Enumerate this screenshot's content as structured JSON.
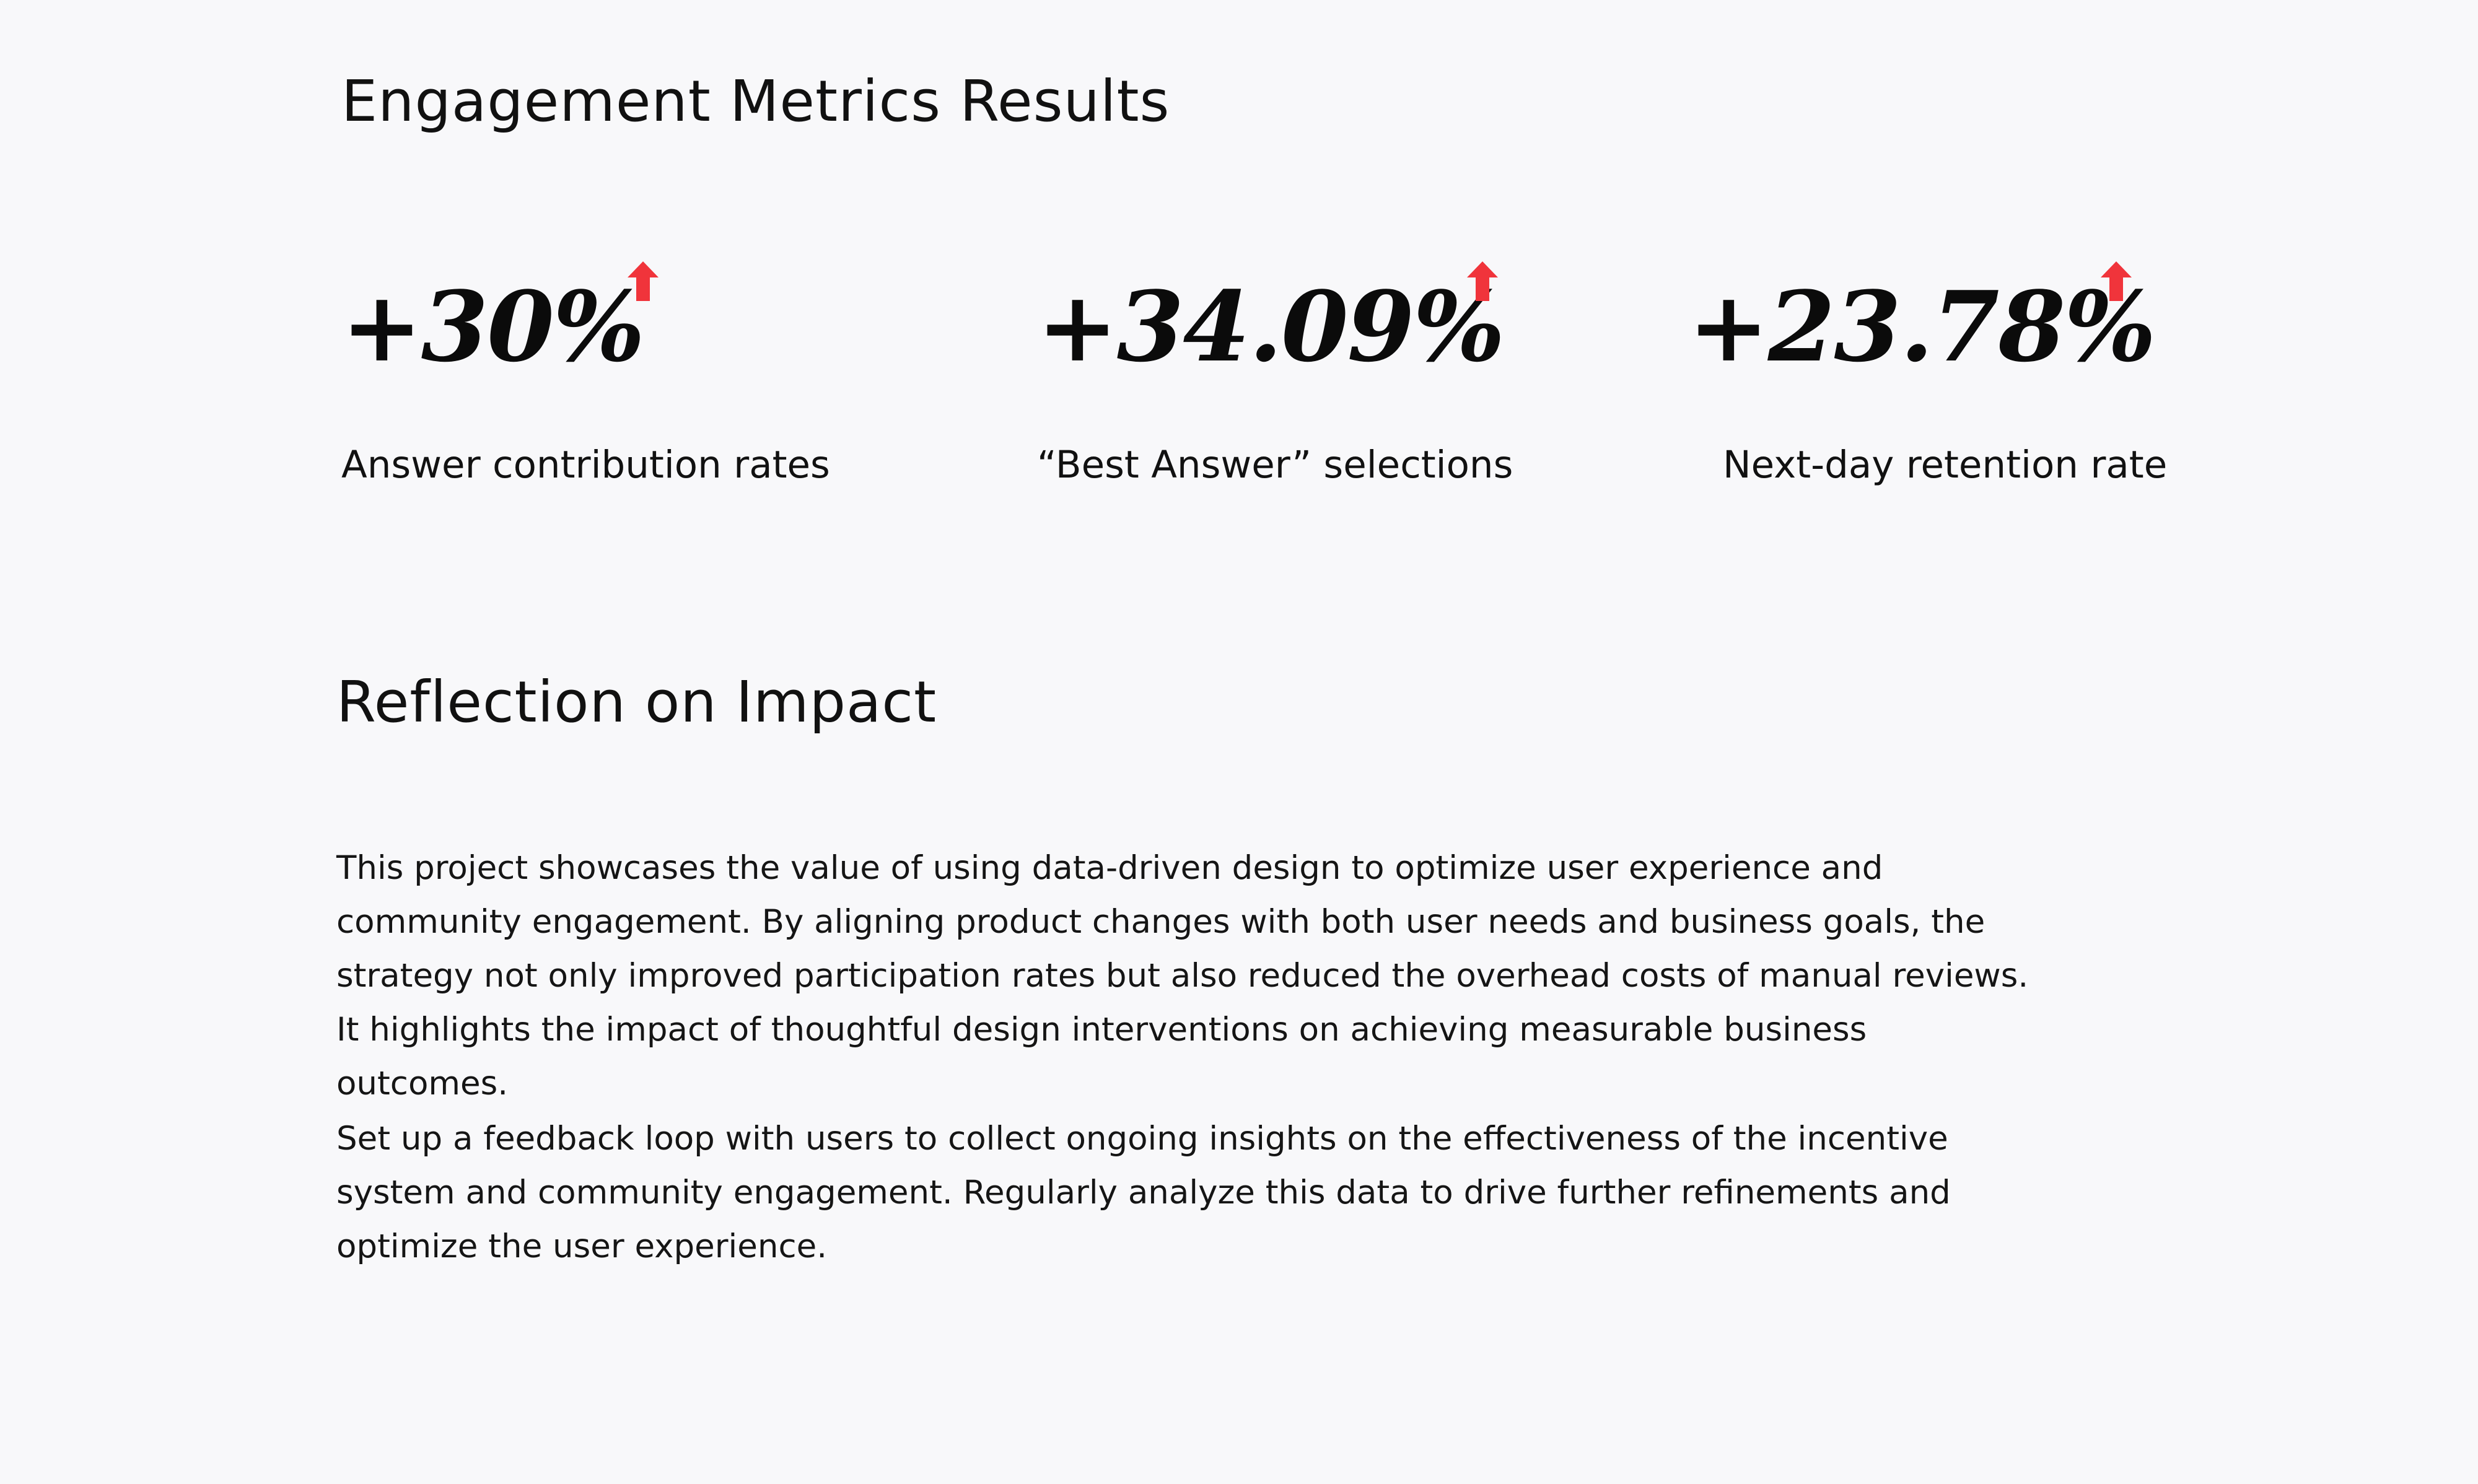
{
  "metrics_section": {
    "title": "Engagement Metrics Results",
    "items": [
      {
        "value": "+30%",
        "label": "Answer contribution rates",
        "trend_icon": "arrow-up-icon",
        "trend_color": "#f0343b"
      },
      {
        "value": "+34.09%",
        "label": "“Best Answer” selections",
        "trend_icon": "arrow-up-icon",
        "trend_color": "#f0343b"
      },
      {
        "value": "+23.78%",
        "label": "Next-day retention rate",
        "trend_icon": "arrow-up-icon",
        "trend_color": "#f0343b"
      }
    ]
  },
  "reflection_section": {
    "title": "Reflection on Impact",
    "paragraphs": [
      "This project showcases the value of using data-driven design to optimize user experience and community engagement. By aligning product changes with both user needs and business goals, the strategy not only improved participation rates but also reduced the overhead costs of manual reviews. It highlights the impact of thoughtful design interventions on achieving measurable business outcomes.",
      "Set up a feedback loop with users to collect ongoing insights on the effectiveness of the incentive system and community engagement.  Regularly analyze this data to drive further refinements and optimize the user experience."
    ]
  },
  "colors": {
    "background": "#f8f8fa",
    "text": "#111111",
    "accent_red": "#f0343b"
  }
}
